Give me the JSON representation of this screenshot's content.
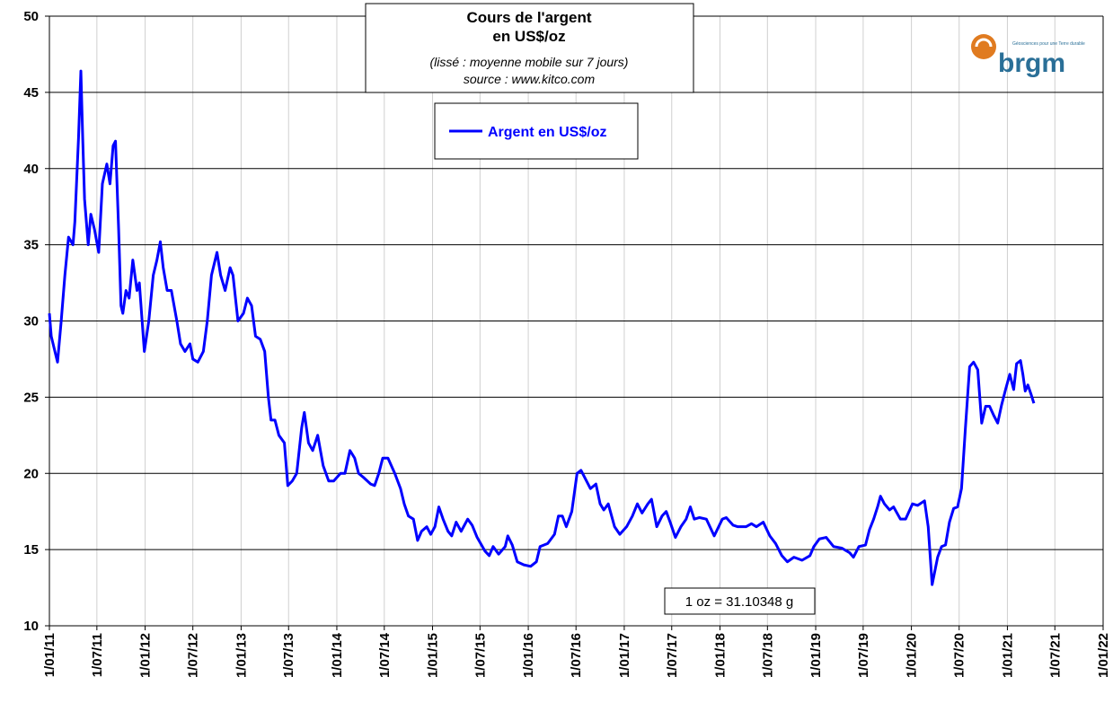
{
  "chart_data": {
    "type": "line",
    "title": "Cours de l'argent",
    "title_line2": "en US$/oz",
    "subtitle": "(lissé : moyenne mobile sur 7 jours)",
    "source": "source : www.kitco.com",
    "annotation": "1 oz = 31.10348 g",
    "logo": "brgm",
    "logo_tagline": "Géosciences pour une Terre durable",
    "legend": "top-center",
    "grid": true,
    "xlim": [
      "2011-01-01",
      "2022-01-01"
    ],
    "xticks": [
      {
        "value": "2011-01-01",
        "label": "1/01/11"
      },
      {
        "value": "2011-07-01",
        "label": "1/07/11"
      },
      {
        "value": "2012-01-01",
        "label": "1/01/12"
      },
      {
        "value": "2012-07-01",
        "label": "1/07/12"
      },
      {
        "value": "2013-01-01",
        "label": "1/01/13"
      },
      {
        "value": "2013-07-01",
        "label": "1/07/13"
      },
      {
        "value": "2014-01-01",
        "label": "1/01/14"
      },
      {
        "value": "2014-07-01",
        "label": "1/07/14"
      },
      {
        "value": "2015-01-01",
        "label": "1/01/15"
      },
      {
        "value": "2015-07-01",
        "label": "1/07/15"
      },
      {
        "value": "2016-01-01",
        "label": "1/01/16"
      },
      {
        "value": "2016-07-01",
        "label": "1/07/16"
      },
      {
        "value": "2017-01-01",
        "label": "1/01/17"
      },
      {
        "value": "2017-07-01",
        "label": "1/07/17"
      },
      {
        "value": "2018-01-01",
        "label": "1/01/18"
      },
      {
        "value": "2018-07-01",
        "label": "1/07/18"
      },
      {
        "value": "2019-01-01",
        "label": "1/01/19"
      },
      {
        "value": "2019-07-01",
        "label": "1/07/19"
      },
      {
        "value": "2020-01-01",
        "label": "1/01/20"
      },
      {
        "value": "2020-07-01",
        "label": "1/07/20"
      },
      {
        "value": "2021-01-01",
        "label": "1/01/21"
      },
      {
        "value": "2021-07-01",
        "label": "1/07/21"
      },
      {
        "value": "2022-01-01",
        "label": "1/01/22"
      }
    ],
    "ylim": [
      10,
      50
    ],
    "yticks": [
      10,
      15,
      20,
      25,
      30,
      35,
      40,
      45,
      50
    ],
    "x": [
      "2011-01-01",
      "2011-01-08",
      "2011-01-22",
      "2011-02-01",
      "2011-02-15",
      "2011-03-01",
      "2011-03-15",
      "2011-04-01",
      "2011-04-08",
      "2011-04-22",
      "2011-05-01",
      "2011-05-08",
      "2011-05-15",
      "2011-05-29",
      "2011-06-08",
      "2011-06-22",
      "2011-07-08",
      "2011-07-22",
      "2011-08-08",
      "2011-08-20",
      "2011-09-01",
      "2011-09-10",
      "2011-09-22",
      "2011-10-01",
      "2011-10-08",
      "2011-10-20",
      "2011-11-01",
      "2011-11-15",
      "2011-12-01",
      "2011-12-10",
      "2011-12-29",
      "2012-01-15",
      "2012-02-01",
      "2012-02-15",
      "2012-02-28",
      "2012-03-10",
      "2012-03-25",
      "2012-04-10",
      "2012-05-01",
      "2012-05-15",
      "2012-06-01",
      "2012-06-20",
      "2012-07-01",
      "2012-07-20",
      "2012-08-10",
      "2012-08-25",
      "2012-09-10",
      "2012-10-01",
      "2012-10-15",
      "2012-11-01",
      "2012-11-20",
      "2012-12-01",
      "2012-12-20",
      "2013-01-10",
      "2013-01-25",
      "2013-02-10",
      "2013-02-25",
      "2013-03-15",
      "2013-04-01",
      "2013-04-15",
      "2013-04-25",
      "2013-05-10",
      "2013-05-25",
      "2013-06-15",
      "2013-06-28",
      "2013-07-15",
      "2013-08-01",
      "2013-08-20",
      "2013-08-30",
      "2013-09-15",
      "2013-10-01",
      "2013-10-20",
      "2013-11-10",
      "2013-12-01",
      "2013-12-20",
      "2014-01-15",
      "2014-02-01",
      "2014-02-20",
      "2014-03-10",
      "2014-03-25",
      "2014-04-15",
      "2014-05-10",
      "2014-05-25",
      "2014-06-10",
      "2014-06-25",
      "2014-07-15",
      "2014-08-10",
      "2014-09-01",
      "2014-09-15",
      "2014-10-01",
      "2014-10-20",
      "2014-11-05",
      "2014-11-20",
      "2014-12-10",
      "2014-12-25",
      "2015-01-10",
      "2015-01-25",
      "2015-02-10",
      "2015-03-01",
      "2015-03-15",
      "2015-04-01",
      "2015-04-20",
      "2015-05-15",
      "2015-06-01",
      "2015-06-20",
      "2015-07-20",
      "2015-08-05",
      "2015-08-20",
      "2015-09-10",
      "2015-10-05",
      "2015-10-15",
      "2015-11-01",
      "2015-11-20",
      "2015-12-15",
      "2016-01-10",
      "2016-02-01",
      "2016-02-15",
      "2016-03-15",
      "2016-04-10",
      "2016-04-25",
      "2016-05-10",
      "2016-05-25",
      "2016-06-15",
      "2016-07-05",
      "2016-07-20",
      "2016-08-10",
      "2016-08-25",
      "2016-09-15",
      "2016-10-01",
      "2016-10-15",
      "2016-11-01",
      "2016-11-25",
      "2016-12-15",
      "2017-01-10",
      "2017-02-01",
      "2017-02-20",
      "2017-03-10",
      "2017-04-01",
      "2017-04-15",
      "2017-05-05",
      "2017-05-25",
      "2017-06-10",
      "2017-06-25",
      "2017-07-15",
      "2017-08-05",
      "2017-08-25",
      "2017-09-10",
      "2017-09-25",
      "2017-10-15",
      "2017-11-10",
      "2017-12-10",
      "2018-01-10",
      "2018-01-25",
      "2018-02-20",
      "2018-03-10",
      "2018-04-10",
      "2018-05-01",
      "2018-05-20",
      "2018-06-15",
      "2018-07-10",
      "2018-08-01",
      "2018-08-25",
      "2018-09-15",
      "2018-10-10",
      "2018-11-10",
      "2018-12-10",
      "2018-12-25",
      "2019-01-15",
      "2019-02-10",
      "2019-03-10",
      "2019-04-10",
      "2019-05-10",
      "2019-05-25",
      "2019-06-15",
      "2019-07-10",
      "2019-07-25",
      "2019-08-10",
      "2019-08-25",
      "2019-09-05",
      "2019-09-20",
      "2019-10-10",
      "2019-10-25",
      "2019-11-20",
      "2019-12-10",
      "2020-01-05",
      "2020-01-25",
      "2020-02-20",
      "2020-03-05",
      "2020-03-20",
      "2020-04-10",
      "2020-04-25",
      "2020-05-10",
      "2020-05-25",
      "2020-06-10",
      "2020-06-25",
      "2020-07-10",
      "2020-07-25",
      "2020-08-10",
      "2020-08-25",
      "2020-09-10",
      "2020-09-25",
      "2020-10-10",
      "2020-10-25",
      "2020-11-10",
      "2020-11-25",
      "2020-12-10",
      "2020-12-25",
      "2021-01-10",
      "2021-01-25",
      "2021-02-05",
      "2021-02-20",
      "2021-03-01",
      "2021-03-10",
      "2021-03-20",
      "2021-04-01",
      "2021-04-12"
    ],
    "series": [
      {
        "name": "Argent en US$/oz",
        "color": "#0000ff",
        "values": [
          30.5,
          29,
          28,
          27.3,
          30,
          33,
          35.5,
          35,
          36.5,
          42,
          46.4,
          42,
          38,
          35,
          37,
          36,
          34.5,
          39,
          40.3,
          39,
          41.5,
          41.8,
          36,
          31,
          30.5,
          32,
          31.5,
          34,
          32,
          32.5,
          28,
          30,
          33,
          34,
          35.2,
          33.5,
          32,
          32,
          30,
          28.5,
          28,
          28.5,
          27.5,
          27.3,
          28,
          30,
          33,
          34.5,
          33,
          32,
          33.5,
          33,
          30,
          30.5,
          31.5,
          31,
          29,
          28.8,
          28,
          25,
          23.5,
          23.5,
          22.5,
          22,
          19.2,
          19.5,
          20,
          23,
          24,
          22,
          21.5,
          22.5,
          20.5,
          19.5,
          19.5,
          20,
          20,
          21.5,
          21,
          20,
          19.7,
          19.3,
          19.2,
          20,
          21,
          21,
          20,
          19,
          18,
          17.2,
          17,
          15.6,
          16.2,
          16.5,
          16,
          16.5,
          17.8,
          17,
          16.2,
          15.9,
          16.8,
          16.2,
          17,
          16.6,
          15.8,
          14.9,
          14.6,
          15.2,
          14.7,
          15.2,
          15.9,
          15.3,
          14.2,
          14,
          13.9,
          14.2,
          15.2,
          15.4,
          16,
          17.2,
          17.2,
          16.5,
          17.5,
          20,
          20.2,
          19.5,
          19,
          19.3,
          18,
          17.6,
          18,
          16.5,
          16,
          16.5,
          17.2,
          18,
          17.4,
          18,
          18.3,
          16.5,
          17.2,
          17.5,
          16.8,
          15.8,
          16.5,
          17,
          17.8,
          17,
          17.1,
          17,
          15.9,
          17,
          17.1,
          16.6,
          16.5,
          16.5,
          16.7,
          16.5,
          16.8,
          15.9,
          15.4,
          14.6,
          14.2,
          14.5,
          14.3,
          14.6,
          15.2,
          15.7,
          15.8,
          15.2,
          15.1,
          14.8,
          14.5,
          15.2,
          15.3,
          16.3,
          17,
          17.8,
          18.5,
          18,
          17.6,
          17.8,
          17,
          17,
          18,
          17.9,
          18.2,
          16.5,
          12.7,
          14.5,
          15.2,
          15.3,
          16.8,
          17.7,
          17.8,
          19,
          23,
          27,
          27.3,
          26.8,
          23.3,
          24.4,
          24.4,
          23.8,
          23.3,
          24.5,
          25.5,
          26.5,
          25.5,
          27.2,
          27.4,
          26.5,
          25.4,
          25.8,
          25.2,
          24.6
        ]
      }
    ]
  }
}
